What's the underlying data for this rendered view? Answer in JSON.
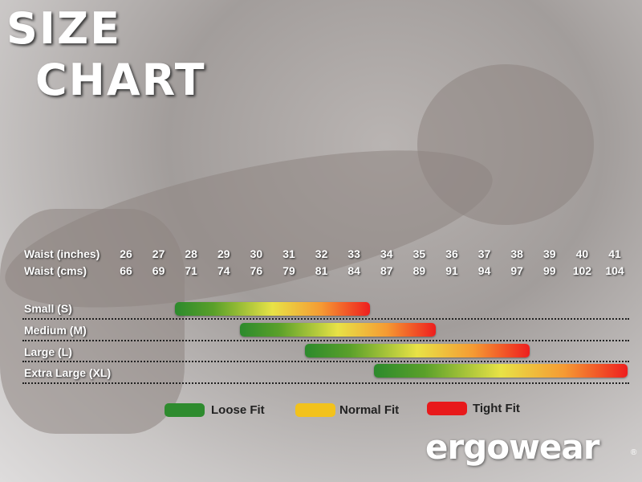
{
  "title": [
    "SIZE",
    "CHART"
  ],
  "chart_data": {
    "type": "range-bar",
    "row_headers": [
      "Waist (inches)",
      "Waist (cms)"
    ],
    "waist_inches": [
      "26",
      "27",
      "28",
      "29",
      "30",
      "31",
      "32",
      "33",
      "34",
      "35",
      "36",
      "37",
      "38",
      "39",
      "40",
      "41"
    ],
    "waist_cms": [
      "66",
      "69",
      "71",
      "74",
      "76",
      "79",
      "81",
      "84",
      "87",
      "89",
      "91",
      "94",
      "97",
      "99",
      "102",
      "104"
    ],
    "series": [
      {
        "name": "Small (S)",
        "from_inches": 27.5,
        "to_inches": 33.5
      },
      {
        "name": "Medium (M)",
        "from_inches": 29.5,
        "to_inches": 35.5
      },
      {
        "name": "Large (L)",
        "from_inches": 31.5,
        "to_inches": 38.4
      },
      {
        "name": "Extra Large (XL)",
        "from_inches": 33.6,
        "to_inches": 41.4
      }
    ],
    "legend": [
      {
        "label": "Loose Fit",
        "color": "#2e8b2e"
      },
      {
        "label": "Normal Fit",
        "color": "#f2c21c"
      },
      {
        "label": "Tight Fit",
        "color": "#e8191b"
      }
    ]
  },
  "brand": "ergowear"
}
